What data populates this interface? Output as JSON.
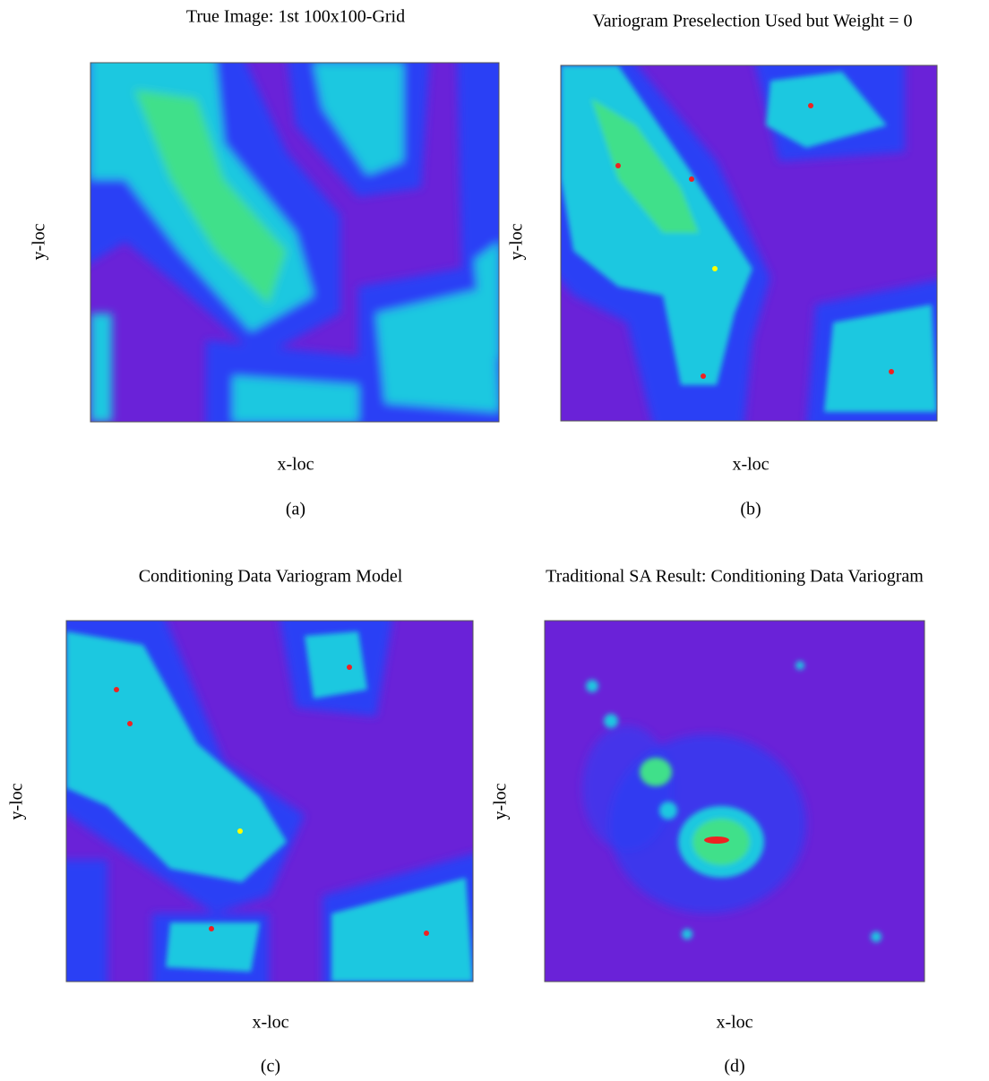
{
  "panels": [
    {
      "title": "True Image: 1st 100x100-Grid",
      "xlabel": "x-loc",
      "ylabel": "y-loc",
      "caption": "(a)"
    },
    {
      "title": "Variogram Preselection Used but Weight = 0",
      "xlabel": "x-loc",
      "ylabel": "y-loc",
      "caption": "(b)"
    },
    {
      "title": "Conditioning Data Variogram Model",
      "xlabel": "x-loc",
      "ylabel": "y-loc",
      "caption": "(c)"
    },
    {
      "title": "Traditional SA Result: Conditioning Data Variogram",
      "xlabel": "x-loc",
      "ylabel": "y-loc",
      "caption": "(d)"
    }
  ]
}
